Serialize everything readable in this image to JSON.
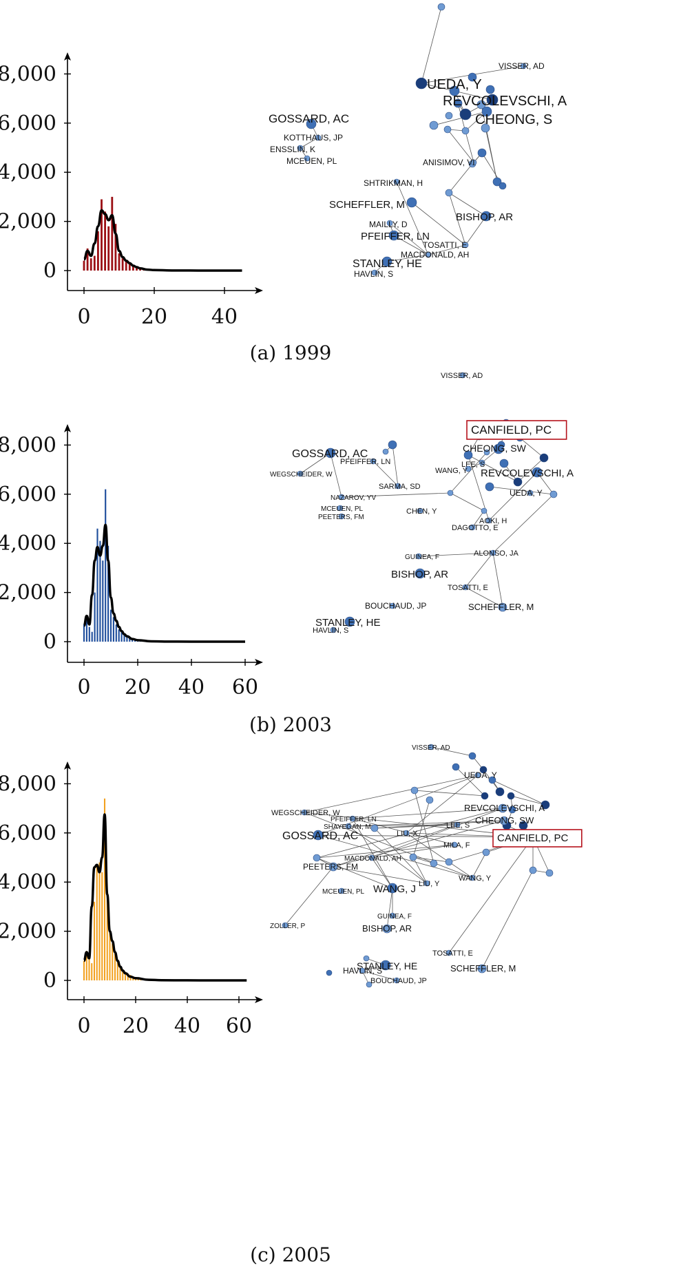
{
  "colors": {
    "panel_a_bars": "#9b0f14",
    "panel_b_bars": "#1f4e9c",
    "panel_c_bars": "#f2a11f",
    "smooth_curve": "#000000",
    "node_light": "#6f9bd3",
    "node_mid": "#3f70b5",
    "node_dark": "#1a3d7a",
    "edge": "#555555",
    "highlight_box": "#b5121b"
  },
  "chart_data": [
    {
      "type": "bar",
      "caption": "(a)  1999",
      "x_ticks": [
        0,
        20,
        40
      ],
      "y_ticks": [
        "0",
        "2,000",
        "4,000",
        "6,000",
        "8,000"
      ],
      "xlim": [
        0,
        45
      ],
      "ylim": [
        0,
        8000
      ],
      "bars": {
        "x": [
          0,
          1,
          2,
          3,
          4,
          5,
          6,
          7,
          8,
          9,
          10,
          11,
          12,
          13,
          14,
          15,
          16,
          17,
          18,
          19,
          20,
          21,
          22,
          23,
          24,
          25
        ],
        "values": [
          400,
          900,
          500,
          600,
          1600,
          2900,
          2400,
          1800,
          3000,
          1900,
          700,
          500,
          400,
          300,
          200,
          150,
          100,
          80,
          60,
          40,
          30,
          20,
          15,
          10,
          8,
          5
        ]
      },
      "curve": {
        "x": [
          0,
          1,
          2,
          3,
          4,
          5,
          6,
          7,
          8,
          9,
          10,
          11,
          12,
          13,
          14,
          15,
          16,
          18,
          20,
          25,
          30,
          35,
          40,
          45
        ],
        "values": [
          450,
          800,
          600,
          1100,
          1800,
          2450,
          2300,
          2050,
          2250,
          1500,
          800,
          550,
          400,
          300,
          200,
          140,
          90,
          40,
          20,
          5,
          2,
          1,
          0,
          0
        ]
      },
      "network": {
        "nodes": [
          {
            "label": "GOSSARD, AC",
            "size": "large"
          },
          {
            "label": "KOTTHAUS, JP",
            "size": "small"
          },
          {
            "label": "ENSSLIN, K",
            "size": "small"
          },
          {
            "label": "MCEUEN, PL",
            "size": "small"
          },
          {
            "label": "VISSER, AD",
            "size": "small"
          },
          {
            "label": "UEDA, Y",
            "size": "xlarge"
          },
          {
            "label": "REVCOLEVSCHI, A",
            "size": "xlarge"
          },
          {
            "label": "CHEONG, S",
            "size": "xlarge"
          },
          {
            "label": "ANISIMOV, VI",
            "size": "small"
          },
          {
            "label": "SHTRIKMAN, H",
            "size": "small"
          },
          {
            "label": "SCHEFFLER, M",
            "size": "large"
          },
          {
            "label": "BISHOP, AR",
            "size": "large"
          },
          {
            "label": "MAILLY, D",
            "size": "small"
          },
          {
            "label": "PFEIFFER, LN",
            "size": "large"
          },
          {
            "label": "TOSATTI, E",
            "size": "small"
          },
          {
            "label": "MACDONALD, AH",
            "size": "small"
          },
          {
            "label": "STANLEY, HE",
            "size": "large"
          },
          {
            "label": "HAVLIN, S",
            "size": "small"
          }
        ]
      }
    },
    {
      "type": "bar",
      "caption": "(b)  2003",
      "x_ticks": [
        0,
        20,
        40,
        60
      ],
      "y_ticks": [
        "0",
        "2,000",
        "4,000",
        "6,000",
        "8,000"
      ],
      "xlim": [
        0,
        60
      ],
      "ylim": [
        0,
        8000
      ],
      "bars": {
        "x": [
          0,
          1,
          2,
          3,
          4,
          5,
          6,
          7,
          8,
          9,
          10,
          11,
          12,
          13,
          14,
          15,
          16,
          17,
          18,
          19,
          20,
          21,
          22,
          23,
          24,
          25,
          26,
          27,
          28
        ],
        "values": [
          700,
          1000,
          600,
          400,
          2000,
          4600,
          4100,
          3300,
          6200,
          3900,
          1300,
          1000,
          700,
          500,
          400,
          300,
          250,
          200,
          150,
          100,
          70,
          50,
          40,
          30,
          20,
          15,
          10,
          8,
          5
        ]
      },
      "curve": {
        "x": [
          0,
          1,
          2,
          3,
          4,
          5,
          6,
          7,
          8,
          9,
          10,
          11,
          12,
          13,
          14,
          15,
          16,
          18,
          20,
          25,
          30,
          40,
          50,
          60
        ],
        "values": [
          650,
          1050,
          700,
          1900,
          3300,
          3850,
          3500,
          3900,
          4750,
          3300,
          1800,
          1150,
          850,
          600,
          430,
          300,
          220,
          110,
          60,
          15,
          5,
          1,
          0,
          0
        ]
      },
      "network": {
        "nodes": [
          {
            "label": "VISSER, AD",
            "size": "small"
          },
          {
            "label": "CANFIELD, PC",
            "size": "xlarge",
            "highlight": true
          },
          {
            "label": "GOSSARD, AC",
            "size": "large"
          },
          {
            "label": "PFEIFFER, LN",
            "size": "small"
          },
          {
            "label": "WEGSCHEIDER, W",
            "size": "small"
          },
          {
            "label": "CHEONG, SW",
            "size": "large"
          },
          {
            "label": "LEE, S",
            "size": "small"
          },
          {
            "label": "WANG, Y",
            "size": "small"
          },
          {
            "label": "REVCOLEVSCHI, A",
            "size": "large"
          },
          {
            "label": "SARMA, SD",
            "size": "small"
          },
          {
            "label": "UEDA, Y",
            "size": "small"
          },
          {
            "label": "NAZAROV, YV",
            "size": "small"
          },
          {
            "label": "MCEUEN, PL",
            "size": "small"
          },
          {
            "label": "CHEN, Y",
            "size": "small"
          },
          {
            "label": "PEETERS, FM",
            "size": "small"
          },
          {
            "label": "AOKI, H",
            "size": "small"
          },
          {
            "label": "DAGOTTO, E",
            "size": "small"
          },
          {
            "label": "GUINEA, F",
            "size": "small"
          },
          {
            "label": "ALONSO, JA",
            "size": "small"
          },
          {
            "label": "BISHOP, AR",
            "size": "large"
          },
          {
            "label": "TOSATTI, E",
            "size": "small"
          },
          {
            "label": "BOUCHAUD, JP",
            "size": "small"
          },
          {
            "label": "SCHEFFLER, M",
            "size": "medium"
          },
          {
            "label": "STANLEY, HE",
            "size": "large"
          },
          {
            "label": "HAVLIN, S",
            "size": "small"
          }
        ]
      }
    },
    {
      "type": "bar",
      "caption": "(c)  2005",
      "x_ticks": [
        0,
        20,
        40,
        60
      ],
      "y_ticks": [
        "0",
        "2,000",
        "4,000",
        "6,000",
        "8,000"
      ],
      "xlim": [
        0,
        63
      ],
      "ylim": [
        0,
        8000
      ],
      "bars": {
        "x": [
          0,
          1,
          2,
          3,
          4,
          5,
          6,
          7,
          8,
          9,
          10,
          11,
          12,
          13,
          14,
          15,
          16,
          17,
          18,
          19,
          20,
          21,
          22,
          23,
          24,
          25,
          26,
          27,
          28,
          29,
          30
        ],
        "values": [
          800,
          1200,
          900,
          700,
          3200,
          4700,
          4800,
          4400,
          7400,
          3600,
          2000,
          1500,
          1100,
          800,
          600,
          450,
          350,
          280,
          220,
          170,
          120,
          90,
          70,
          50,
          40,
          30,
          20,
          15,
          10,
          8,
          5
        ]
      },
      "curve": {
        "x": [
          0,
          1,
          2,
          3,
          4,
          5,
          6,
          7,
          8,
          9,
          10,
          11,
          12,
          13,
          14,
          15,
          16,
          18,
          20,
          25,
          30,
          40,
          50,
          63
        ],
        "values": [
          800,
          1150,
          900,
          3000,
          4600,
          4700,
          4400,
          5000,
          6750,
          3500,
          2000,
          1600,
          1150,
          800,
          560,
          400,
          290,
          150,
          90,
          25,
          8,
          2,
          0,
          0
        ]
      },
      "network": {
        "nodes": [
          {
            "label": "VISSER, AD",
            "size": "small"
          },
          {
            "label": "UEDA, Y",
            "size": "small"
          },
          {
            "label": "WEGSCHEIDER, W",
            "size": "small"
          },
          {
            "label": "PFEIFFER, LN",
            "size": "small"
          },
          {
            "label": "SHAYEGAN, M",
            "size": "small"
          },
          {
            "label": "REVCOLEVSCHI, A",
            "size": "medium"
          },
          {
            "label": "CHEONG, SW",
            "size": "medium"
          },
          {
            "label": "LEE, S",
            "size": "small"
          },
          {
            "label": "CANFIELD, PC",
            "size": "large",
            "highlight": true
          },
          {
            "label": "GOSSARD, AC",
            "size": "large"
          },
          {
            "label": "LIU, X",
            "size": "small"
          },
          {
            "label": "MILA, F",
            "size": "small"
          },
          {
            "label": "MACDONALD, AH",
            "size": "small"
          },
          {
            "label": "PEETERS, FM",
            "size": "medium"
          },
          {
            "label": "WANG, Y",
            "size": "small"
          },
          {
            "label": "LIU, Y",
            "size": "small"
          },
          {
            "label": "WANG, J",
            "size": "large"
          },
          {
            "label": "MCEUEN, PL",
            "size": "small"
          },
          {
            "label": "ZOLLER, P",
            "size": "small"
          },
          {
            "label": "GUINEA, F",
            "size": "small"
          },
          {
            "label": "BISHOP, AR",
            "size": "medium"
          },
          {
            "label": "TOSATTI, E",
            "size": "small"
          },
          {
            "label": "STANLEY, HE",
            "size": "large"
          },
          {
            "label": "HAVLIN, S",
            "size": "small"
          },
          {
            "label": "SCHEFFLER, M",
            "size": "medium"
          },
          {
            "label": "BOUCHAUD, JP",
            "size": "small"
          }
        ]
      }
    }
  ]
}
